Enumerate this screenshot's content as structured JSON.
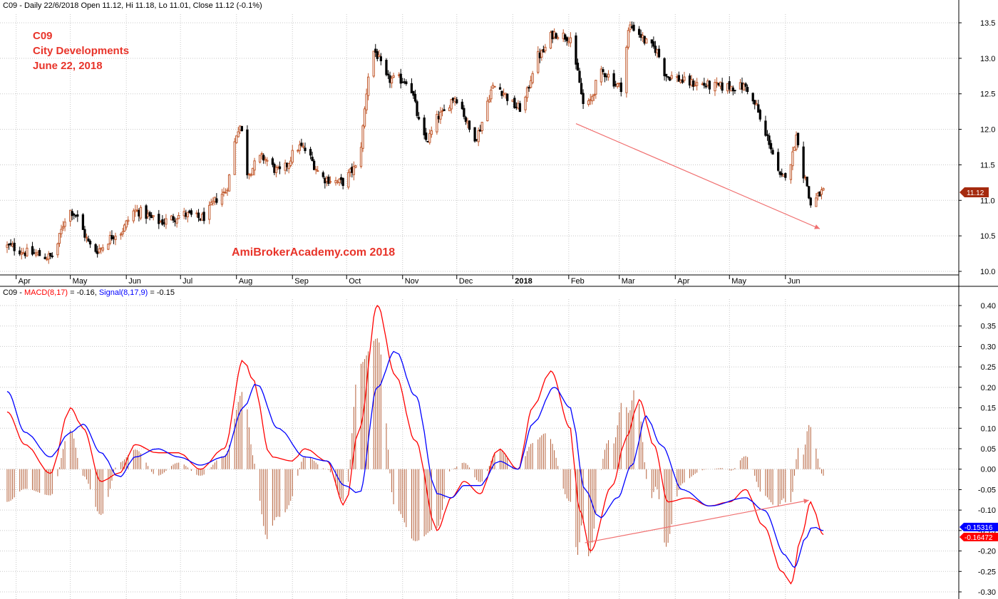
{
  "header_price": {
    "symbol": "C09",
    "text": " - Daily 22/6/2018 Open 11.12, Hi 11.18, Lo 11.01, Close 11.12 (-0.1%)"
  },
  "header_macd": {
    "prefix": "C09 - ",
    "macd_label": "MACD(8,17)",
    "macd_value": " = -0.16, ",
    "signal_label": "Signal(8,17,9)",
    "signal_value": " = -0.15"
  },
  "annotations": {
    "line1": "C09",
    "line2": "City Developments",
    "line3": "June 22, 2018",
    "watermark": "AmiBrokerAcademy.com  2018"
  },
  "colors": {
    "up_candle": "#c0572a",
    "down_candle": "#000000",
    "macd": "#ff0000",
    "signal": "#0000ff",
    "histogram": "#b5603a",
    "trendline": "#f07070",
    "grid": "#c8c8c8",
    "last_price_badge": "#a52a0e"
  },
  "price_axis": {
    "ticks": [
      "13.5",
      "13.0",
      "12.5",
      "12.0",
      "11.5",
      "11.0",
      "10.5",
      "10.0"
    ],
    "range": [
      9.95,
      13.75
    ],
    "last_price": "11.12"
  },
  "macd_axis": {
    "ticks": [
      "0.40",
      "0.35",
      "0.30",
      "0.25",
      "0.20",
      "0.15",
      "0.10",
      "0.05",
      "0.00",
      "-0.05",
      "-0.10",
      "-0.15",
      "-0.20",
      "-0.25",
      "-0.30"
    ],
    "range": [
      -0.305,
      0.44
    ],
    "signal_badge": "-0.15316",
    "macd_badge": "-0.16472"
  },
  "x_axis": {
    "months": [
      "Apr",
      "May",
      "Jun",
      "Jul",
      "Aug",
      "Sep",
      "Oct",
      "Nov",
      "Dec",
      "2018",
      "Feb",
      "Mar",
      "Apr",
      "May",
      "Jun"
    ]
  },
  "chart_data": [
    {
      "type": "candlestick",
      "title": "C09 - Daily 22/6/2018 Open 11.12, Hi 11.18, Lo 11.01, Close 11.12 (-0.1%)",
      "x_range": [
        "2017-03-27",
        "2018-06-22"
      ],
      "ylim": [
        9.95,
        13.75
      ],
      "close_keypoints": [
        [
          "2017-03-27",
          10.35
        ],
        [
          "2017-04-10",
          10.25
        ],
        [
          "2017-04-20",
          10.2
        ],
        [
          "2017-05-01",
          10.85
        ],
        [
          "2017-05-15",
          10.3
        ],
        [
          "2017-05-28",
          10.55
        ],
        [
          "2017-06-06",
          10.85
        ],
        [
          "2017-06-20",
          10.7
        ],
        [
          "2017-07-03",
          10.8
        ],
        [
          "2017-07-12",
          10.75
        ],
        [
          "2017-07-25",
          11.1
        ],
        [
          "2017-08-03",
          12.05
        ],
        [
          "2017-08-07",
          11.4
        ],
        [
          "2017-08-15",
          11.6
        ],
        [
          "2017-08-25",
          11.4
        ],
        [
          "2017-09-05",
          11.75
        ],
        [
          "2017-09-20",
          11.3
        ],
        [
          "2017-09-28",
          11.25
        ],
        [
          "2017-10-06",
          11.45
        ],
        [
          "2017-10-16",
          13.1
        ],
        [
          "2017-10-24",
          12.7
        ],
        [
          "2017-11-03",
          12.7
        ],
        [
          "2017-11-14",
          11.85
        ],
        [
          "2017-11-22",
          12.2
        ],
        [
          "2017-11-30",
          12.45
        ],
        [
          "2017-12-11",
          11.9
        ],
        [
          "2017-12-22",
          12.6
        ],
        [
          "2018-01-05",
          12.3
        ],
        [
          "2018-01-16",
          13.05
        ],
        [
          "2018-01-24",
          13.35
        ],
        [
          "2018-02-02",
          13.3
        ],
        [
          "2018-02-05",
          12.85
        ],
        [
          "2018-02-10",
          12.3
        ],
        [
          "2018-02-20",
          12.8
        ],
        [
          "2018-03-02",
          12.6
        ],
        [
          "2018-03-07",
          13.45
        ],
        [
          "2018-03-20",
          13.15
        ],
        [
          "2018-03-28",
          12.75
        ],
        [
          "2018-04-10",
          12.65
        ],
        [
          "2018-04-25",
          12.6
        ],
        [
          "2018-05-10",
          12.6
        ],
        [
          "2018-05-15",
          12.35
        ],
        [
          "2018-05-21",
          11.9
        ],
        [
          "2018-05-30",
          11.3
        ],
        [
          "2018-06-04",
          11.55
        ],
        [
          "2018-06-07",
          11.9
        ],
        [
          "2018-06-12",
          11.3
        ],
        [
          "2018-06-15",
          10.95
        ],
        [
          "2018-06-22",
          11.12
        ]
      ],
      "price_trendline": {
        "from": [
          "2018-02-05",
          12.08
        ],
        "to": [
          "2018-06-20",
          10.6
        ]
      }
    },
    {
      "type": "line",
      "title": "C09 - MACD(8,17) = -0.16, Signal(8,17,9) = -0.15",
      "ylim": [
        -0.305,
        0.44
      ],
      "series": [
        {
          "name": "MACD(8,17)",
          "points": [
            [
              "2017-03-27",
              0.14
            ],
            [
              "2017-04-06",
              0.06
            ],
            [
              "2017-04-20",
              -0.01
            ],
            [
              "2017-05-01",
              0.15
            ],
            [
              "2017-05-08",
              0.1
            ],
            [
              "2017-05-18",
              -0.03
            ],
            [
              "2017-05-28",
              -0.01
            ],
            [
              "2017-06-06",
              0.06
            ],
            [
              "2017-06-18",
              0.04
            ],
            [
              "2017-06-30",
              0.04
            ],
            [
              "2017-07-12",
              0.0
            ],
            [
              "2017-07-25",
              0.05
            ],
            [
              "2017-08-05",
              0.27
            ],
            [
              "2017-08-10",
              0.22
            ],
            [
              "2017-08-20",
              0.03
            ],
            [
              "2017-09-01",
              0.02
            ],
            [
              "2017-09-08",
              0.05
            ],
            [
              "2017-09-20",
              0.02
            ],
            [
              "2017-09-30",
              -0.09
            ],
            [
              "2017-10-08",
              0.1
            ],
            [
              "2017-10-18",
              0.4
            ],
            [
              "2017-10-28",
              0.23
            ],
            [
              "2017-11-08",
              0.07
            ],
            [
              "2017-11-20",
              -0.15
            ],
            [
              "2017-11-28",
              -0.07
            ],
            [
              "2017-12-05",
              -0.03
            ],
            [
              "2017-12-14",
              -0.06
            ],
            [
              "2017-12-24",
              0.05
            ],
            [
              "2018-01-04",
              0.0
            ],
            [
              "2018-01-12",
              0.15
            ],
            [
              "2018-01-22",
              0.24
            ],
            [
              "2018-02-02",
              0.1
            ],
            [
              "2018-02-07",
              -0.1
            ],
            [
              "2018-02-13",
              -0.2
            ],
            [
              "2018-02-25",
              -0.04
            ],
            [
              "2018-03-05",
              0.08
            ],
            [
              "2018-03-12",
              0.17
            ],
            [
              "2018-03-20",
              0.06
            ],
            [
              "2018-03-28",
              -0.08
            ],
            [
              "2018-04-08",
              -0.07
            ],
            [
              "2018-04-20",
              -0.09
            ],
            [
              "2018-05-01",
              -0.08
            ],
            [
              "2018-05-10",
              -0.05
            ],
            [
              "2018-05-20",
              -0.14
            ],
            [
              "2018-05-30",
              -0.25
            ],
            [
              "2018-06-04",
              -0.28
            ],
            [
              "2018-06-10",
              -0.16
            ],
            [
              "2018-06-15",
              -0.08
            ],
            [
              "2018-06-22",
              -0.16
            ]
          ]
        },
        {
          "name": "Signal(8,17,9)",
          "points": [
            [
              "2017-03-27",
              0.19
            ],
            [
              "2017-04-06",
              0.09
            ],
            [
              "2017-04-20",
              0.03
            ],
            [
              "2017-05-01",
              0.09
            ],
            [
              "2017-05-08",
              0.11
            ],
            [
              "2017-05-18",
              0.04
            ],
            [
              "2017-05-28",
              -0.02
            ],
            [
              "2017-06-06",
              0.03
            ],
            [
              "2017-06-18",
              0.05
            ],
            [
              "2017-06-30",
              0.03
            ],
            [
              "2017-07-12",
              0.01
            ],
            [
              "2017-07-25",
              0.03
            ],
            [
              "2017-08-05",
              0.15
            ],
            [
              "2017-08-12",
              0.21
            ],
            [
              "2017-08-24",
              0.1
            ],
            [
              "2017-09-08",
              0.03
            ],
            [
              "2017-09-20",
              0.02
            ],
            [
              "2017-09-30",
              -0.04
            ],
            [
              "2017-10-08",
              -0.06
            ],
            [
              "2017-10-18",
              0.2
            ],
            [
              "2017-10-28",
              0.29
            ],
            [
              "2017-11-08",
              0.18
            ],
            [
              "2017-11-20",
              -0.06
            ],
            [
              "2017-11-28",
              -0.07
            ],
            [
              "2017-12-05",
              -0.04
            ],
            [
              "2017-12-14",
              -0.04
            ],
            [
              "2017-12-24",
              0.02
            ],
            [
              "2018-01-04",
              0.0
            ],
            [
              "2018-01-12",
              0.11
            ],
            [
              "2018-01-24",
              0.2
            ],
            [
              "2018-02-02",
              0.15
            ],
            [
              "2018-02-10",
              -0.05
            ],
            [
              "2018-02-18",
              -0.12
            ],
            [
              "2018-02-28",
              -0.07
            ],
            [
              "2018-03-08",
              0.01
            ],
            [
              "2018-03-16",
              0.13
            ],
            [
              "2018-03-24",
              0.06
            ],
            [
              "2018-04-05",
              -0.05
            ],
            [
              "2018-04-20",
              -0.09
            ],
            [
              "2018-05-10",
              -0.07
            ],
            [
              "2018-05-20",
              -0.1
            ],
            [
              "2018-06-01",
              -0.21
            ],
            [
              "2018-06-06",
              -0.24
            ],
            [
              "2018-06-12",
              -0.17
            ],
            [
              "2018-06-16",
              -0.14
            ],
            [
              "2018-06-22",
              -0.15
            ]
          ]
        }
      ],
      "macd_trendline": {
        "from": [
          "2018-02-10",
          -0.18
        ],
        "to": [
          "2018-06-14",
          -0.076
        ]
      }
    }
  ]
}
